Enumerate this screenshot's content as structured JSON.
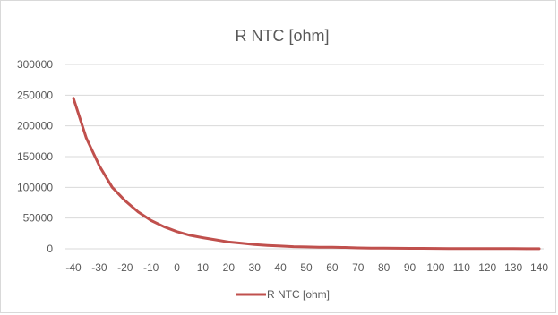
{
  "chart_data": {
    "type": "line",
    "title": "R NTC [ohm]",
    "xlabel": "",
    "ylabel": "",
    "x": [
      -40,
      -35,
      -30,
      -25,
      -20,
      -15,
      -10,
      -5,
      0,
      5,
      10,
      15,
      20,
      25,
      30,
      35,
      40,
      45,
      50,
      55,
      60,
      65,
      70,
      75,
      80,
      85,
      90,
      95,
      100,
      105,
      110,
      115,
      120,
      125,
      130,
      135,
      140
    ],
    "series": [
      {
        "name": "R NTC [ohm]",
        "color": "#c0504d",
        "values": [
          245000,
          180000,
          135000,
          100000,
          78000,
          60000,
          46000,
          36000,
          28000,
          22000,
          18000,
          14500,
          11000,
          9000,
          7000,
          5500,
          4500,
          3500,
          3000,
          2500,
          2500,
          2200,
          1500,
          1200,
          1000,
          900,
          800,
          700,
          600,
          500,
          450,
          400,
          350,
          300,
          250,
          200,
          150
        ]
      }
    ],
    "xticks": [
      "-40",
      "-30",
      "-20",
      "-10",
      "0",
      "10",
      "20",
      "30",
      "40",
      "50",
      "60",
      "70",
      "80",
      "90",
      "100",
      "110",
      "120",
      "130",
      "140"
    ],
    "yticks": [
      "0",
      "50000",
      "100000",
      "150000",
      "200000",
      "250000",
      "300000"
    ],
    "ylim": [
      0,
      300000
    ],
    "xlim": [
      -40,
      140
    ],
    "grid": "horizontal",
    "legend_position": "bottom",
    "colors": {
      "gridline": "#d9d9d9",
      "axis_text": "#595959",
      "border": "#d9d9d9"
    }
  }
}
